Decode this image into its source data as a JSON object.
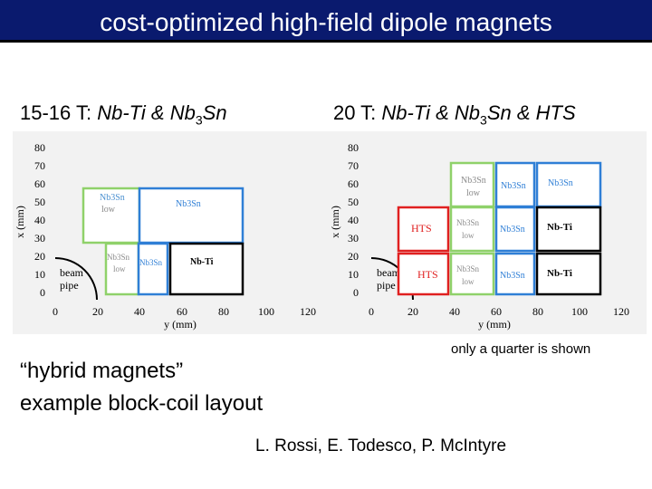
{
  "title": "cost-optimized high-field dipole magnets",
  "left_header": {
    "prefix": "15-16 T: ",
    "nbti": "Nb-Ti",
    "amp": " & Nb",
    "sub3": "3",
    "sn": "Sn"
  },
  "right_header": {
    "prefix": "20 T: ",
    "nbti": "Nb-Ti",
    "amp": " & Nb",
    "sub3": "3",
    "sn": "Sn & ",
    "hts": "HTS"
  },
  "axes": {
    "ylabel": "x (mm)",
    "xlabel": "y (mm)",
    "yticks": [
      "80",
      "70",
      "60",
      "50",
      "40",
      "30",
      "20",
      "10",
      "0"
    ],
    "xticks": [
      "0",
      "20",
      "40",
      "60",
      "80",
      "100",
      "120"
    ]
  },
  "beam_pipe": {
    "line1": "beam",
    "line2": "pipe"
  },
  "left_blocks": {
    "top_left": {
      "l1": "Nb3Sn",
      "l2": "low"
    },
    "top_right": {
      "l1": "Nb3Sn"
    },
    "bot_left": {
      "l1": "Nb3Sn",
      "l2": "low"
    },
    "bot_mid": {
      "l1": "Nb3Sn"
    },
    "bot_right": {
      "l1": "Nb-Ti"
    }
  },
  "right_blocks": {
    "r1c1": {
      "l1": "Nb3Sn",
      "l2": "low"
    },
    "r1c2": {
      "l1": "Nb3Sn"
    },
    "r1c3": {
      "l1": "Nb3Sn"
    },
    "r2c0": {
      "l1": "HTS"
    },
    "r2c1": {
      "l1": "Nb3Sn",
      "l2": "low"
    },
    "r2c2": {
      "l1": "Nb3Sn"
    },
    "r2c3": {
      "l1": "Nb-Ti"
    },
    "r3c0": {
      "l1": "HTS"
    },
    "r3c1": {
      "l1": "Nb3Sn",
      "l2": "low"
    },
    "r3c2": {
      "l1": "Nb3Sn"
    },
    "r3c3": {
      "l1": "Nb-Ti"
    }
  },
  "caption": {
    "line1": "“hybrid magnets”",
    "line2": "example block-coil layout"
  },
  "note": "only a quarter is shown",
  "credit": "L. Rossi, E. Todesco, P. McIntyre",
  "colors": {
    "title_bg": "#0a1a6e",
    "green": "#8fd16a",
    "blue": "#2f7fd6",
    "red": "#e02020",
    "black": "#000000",
    "panel": "#f2f2f2"
  }
}
